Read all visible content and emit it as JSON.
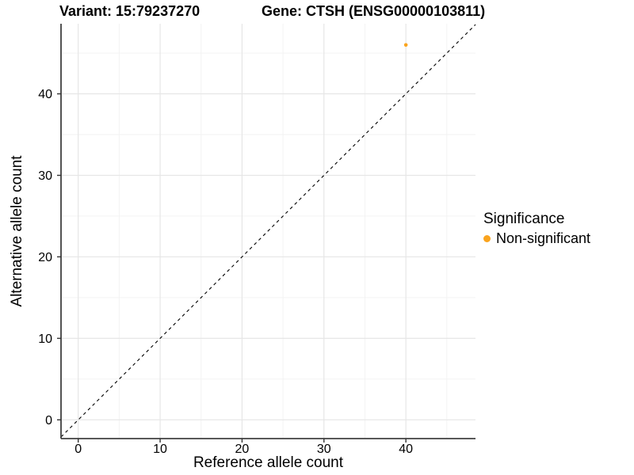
{
  "titles": {
    "variant": "Variant: 15:79237270",
    "gene": "Gene: CTSH (ENSG00000103811)"
  },
  "chart_data": {
    "type": "scatter",
    "title": "Variant: 15:79237270   Gene: CTSH (ENSG00000103811)",
    "xlabel": "Reference allele count",
    "ylabel": "Alternative allele count",
    "x_ticks": [
      0,
      10,
      20,
      30,
      40
    ],
    "y_ticks": [
      0,
      10,
      20,
      30,
      40
    ],
    "x_minor_ticks": [
      5,
      15,
      25,
      35,
      45
    ],
    "y_minor_ticks": [
      5,
      15,
      25,
      35,
      45
    ],
    "xlim": [
      -2.1,
      48.5
    ],
    "ylim": [
      -2.3,
      48.6
    ],
    "grid": true,
    "legend_position": "right",
    "identity_line": {
      "equation": "y = x",
      "style": "dashed"
    },
    "series": [
      {
        "name": "Non-significant",
        "color": "#FAA41E",
        "points": [
          {
            "x": 40,
            "y": 46
          }
        ]
      }
    ],
    "legend": {
      "title": "Significance",
      "items": [
        {
          "label": "Non-significant",
          "color": "#FAA41E"
        }
      ]
    }
  },
  "colors": {
    "point": "#FAA41E",
    "grid_major": "#E6E6E6",
    "grid_minor": "#F2F2F2",
    "axis_line": "#404040",
    "tick_mark": "#333333",
    "text": "#000000",
    "identity_line": "#000000",
    "background": "#FFFFFF"
  }
}
